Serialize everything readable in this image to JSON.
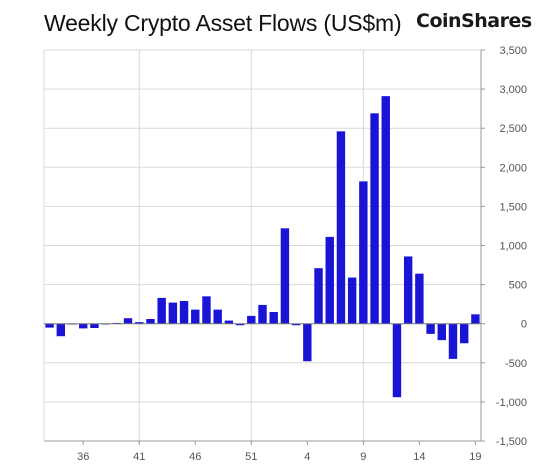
{
  "title": "Weekly Crypto Asset Flows (US$m)",
  "brand": "CoinShares",
  "colors": {
    "bar": "#1a14d6",
    "grid": "#d9d9d9",
    "axis": "#9a9a9a"
  },
  "chart_data": {
    "type": "bar",
    "title": "Weekly Crypto Asset Flows (US$m)",
    "xlabel": "",
    "ylabel": "",
    "ylim": [
      -1500,
      3500
    ],
    "yticks": [
      3500,
      3000,
      2500,
      2000,
      1500,
      1000,
      500,
      0,
      -500,
      -1000,
      -1500
    ],
    "ytick_labels": [
      "3,500",
      "3,000",
      "2,500",
      "2,000",
      "1,500",
      "1,000",
      "500",
      "0",
      "-500",
      "-1,000",
      "-1,500"
    ],
    "x_tick_labels": [
      {
        "index": 3,
        "label": "36"
      },
      {
        "index": 8,
        "label": "41"
      },
      {
        "index": 13,
        "label": "46"
      },
      {
        "index": 18,
        "label": "51"
      },
      {
        "index": 23,
        "label": "4"
      },
      {
        "index": 28,
        "label": "9"
      },
      {
        "index": 33,
        "label": "14"
      },
      {
        "index": 38,
        "label": "19"
      }
    ],
    "grid_lines_x": [
      8,
      18,
      28
    ],
    "grid_lines_y": [
      3000,
      2500,
      2000,
      1500,
      1000,
      500,
      -500,
      -1000
    ],
    "values": [
      -50,
      -160,
      0,
      -60,
      -55,
      0,
      10,
      70,
      20,
      60,
      330,
      270,
      290,
      180,
      350,
      180,
      40,
      -20,
      100,
      240,
      150,
      1220,
      -20,
      -480,
      710,
      1110,
      2460,
      590,
      1820,
      2690,
      2910,
      -940,
      860,
      640,
      -130,
      -210,
      -450,
      -250,
      120
    ]
  }
}
